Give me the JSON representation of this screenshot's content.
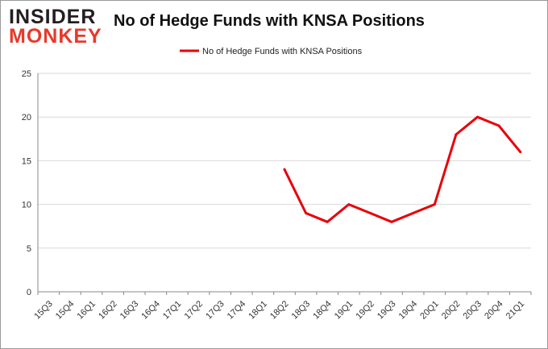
{
  "logo": {
    "line1": "INSIDER",
    "line2": "MONKEY"
  },
  "colors": {
    "series": "#e8000b",
    "grid": "#d9d9d9",
    "axis": "#888888"
  },
  "chart_data": {
    "type": "line",
    "title": "No of Hedge Funds with KNSA Positions",
    "xlabel": "",
    "ylabel": "",
    "ylim": [
      0,
      25
    ],
    "yticks": [
      0,
      5,
      10,
      15,
      20,
      25
    ],
    "grid": true,
    "legend_position": "top-center",
    "categories": [
      "15Q3",
      "15Q4",
      "16Q1",
      "16Q2",
      "16Q3",
      "16Q4",
      "17Q1",
      "17Q2",
      "17Q3",
      "17Q4",
      "18Q1",
      "18Q2",
      "18Q3",
      "18Q4",
      "19Q1",
      "19Q2",
      "19Q3",
      "19Q4",
      "20Q1",
      "20Q2",
      "20Q3",
      "20Q4",
      "21Q1"
    ],
    "series": [
      {
        "name": "No of Hedge Funds with KNSA Positions",
        "values": [
          null,
          null,
          null,
          null,
          null,
          null,
          null,
          null,
          null,
          null,
          null,
          14,
          9,
          8,
          10,
          9,
          8,
          9,
          10,
          18,
          20,
          19,
          16
        ]
      }
    ]
  }
}
